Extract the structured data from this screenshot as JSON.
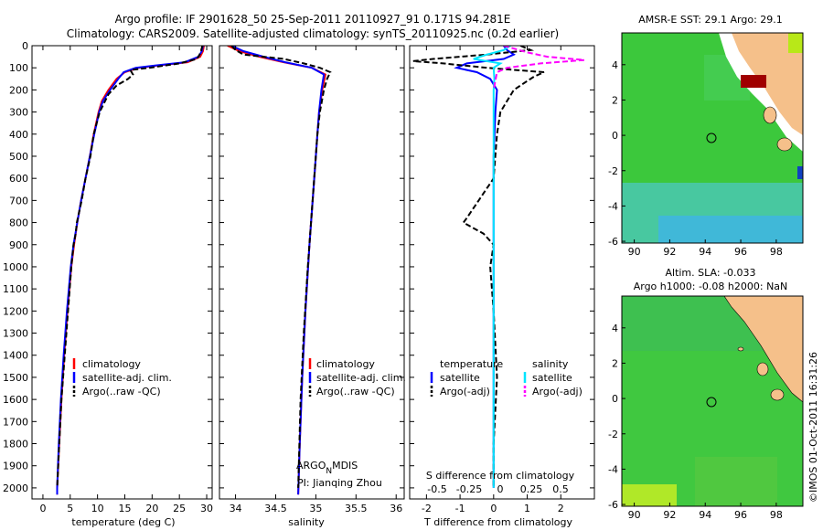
{
  "header": {
    "line1": "Argo profile: IF 2901628_50 25-Sep-2011 20110927_91 0.171S 94.281E",
    "line2": "Climatology: CARS2009. Satellite-adjusted climatology: synTS_20110925.nc (0.2d earlier)"
  },
  "colors": {
    "climatology": "#ff0000",
    "satellite": "#0000ff",
    "argo": "#000000",
    "salinity_satellite": "#00e5ff",
    "salinity_argo": "#ff00ff",
    "ocean": "#3cc83c",
    "land": "#f5c08a",
    "nodata": "#ffffff"
  },
  "chart_data": [
    {
      "id": "temperature",
      "type": "line",
      "xlabel": "temperature (deg C)",
      "xlim": [
        -2,
        31
      ],
      "xticks": [
        0,
        5,
        10,
        15,
        20,
        25,
        30
      ],
      "ylim": [
        2050,
        0
      ],
      "yticks": [
        0,
        100,
        200,
        300,
        400,
        500,
        600,
        700,
        800,
        900,
        1000,
        1100,
        1200,
        1300,
        1400,
        1500,
        1600,
        1700,
        1800,
        1900,
        2000
      ],
      "legend": [
        "climatology",
        "satellite-adj. clim.",
        "Argo(..raw -QC)"
      ],
      "series": [
        {
          "name": "climatology",
          "color": "#ff0000",
          "dash": "",
          "depth": [
            0,
            25,
            50,
            75,
            90,
            100,
            120,
            150,
            200,
            250,
            300,
            400,
            500,
            600,
            700,
            800,
            900,
            1000,
            1200,
            1400,
            1600,
            1800,
            2000,
            2030
          ],
          "values": [
            29.5,
            29.3,
            28.8,
            26.5,
            21.0,
            17.5,
            15.0,
            13.5,
            12.0,
            10.8,
            10.2,
            9.3,
            8.6,
            7.8,
            7.0,
            6.3,
            5.7,
            5.2,
            4.5,
            3.9,
            3.4,
            3.0,
            2.6,
            2.6
          ]
        },
        {
          "name": "satellite-adj. clim.",
          "color": "#0000ff",
          "dash": "",
          "depth": [
            0,
            25,
            50,
            75,
            90,
            100,
            120,
            150,
            200,
            250,
            300,
            400,
            500,
            600,
            700,
            800,
            900,
            1000,
            1200,
            1400,
            1600,
            1800,
            2000,
            2030
          ],
          "values": [
            29.3,
            29.1,
            28.5,
            26.0,
            20.5,
            17.0,
            14.8,
            13.8,
            12.3,
            11.0,
            10.3,
            9.4,
            8.6,
            7.8,
            7.0,
            6.3,
            5.6,
            5.1,
            4.4,
            3.8,
            3.3,
            2.9,
            2.6,
            2.6
          ]
        },
        {
          "name": "Argo(..raw -QC)",
          "color": "#000000",
          "dash": "6,3",
          "depth": [
            0,
            20,
            40,
            60,
            80,
            100,
            110,
            130,
            150,
            180,
            220,
            260,
            300,
            400,
            500,
            600,
            700,
            800,
            850,
            900,
            1000,
            1200,
            1400,
            1600,
            1800,
            2000
          ],
          "values": [
            29.2,
            29.0,
            28.7,
            28.2,
            25.0,
            19.5,
            16.0,
            16.5,
            15.6,
            13.5,
            12.0,
            11.2,
            10.4,
            9.3,
            8.7,
            7.8,
            7.1,
            6.2,
            6.0,
            5.6,
            5.2,
            4.6,
            4.0,
            3.4,
            3.0,
            2.6
          ]
        }
      ]
    },
    {
      "id": "salinity",
      "type": "line",
      "xlabel": "salinity",
      "xlim": [
        33.8,
        36.1
      ],
      "xticks": [
        34,
        34.5,
        35,
        35.5,
        36
      ],
      "ylim": [
        2050,
        0
      ],
      "legend": [
        "climatology",
        "satellite-adj. clim.",
        "Argo(..raw -QC)"
      ],
      "annotation": {
        "main": "ARGO",
        "sub": "N",
        "rest": "MDIS",
        "pi": "PI: Jianqing Zhou"
      },
      "series": [
        {
          "name": "climatology",
          "color": "#ff0000",
          "dash": "",
          "depth": [
            0,
            25,
            50,
            75,
            100,
            130,
            200,
            300,
            400,
            500,
            700,
            900,
            1200,
            1500,
            1800,
            2030
          ],
          "values": [
            33.9,
            34.05,
            34.3,
            34.6,
            34.95,
            35.12,
            35.08,
            35.04,
            35.02,
            35.0,
            34.96,
            34.92,
            34.87,
            34.83,
            34.8,
            34.78
          ]
        },
        {
          "name": "satellite-adj. clim.",
          "color": "#0000ff",
          "dash": "",
          "depth": [
            0,
            25,
            50,
            75,
            100,
            130,
            200,
            300,
            400,
            500,
            700,
            900,
            1200,
            1500,
            1800,
            2030
          ],
          "values": [
            33.95,
            34.1,
            34.35,
            34.62,
            34.95,
            35.1,
            35.07,
            35.04,
            35.02,
            35.0,
            34.96,
            34.92,
            34.87,
            34.83,
            34.8,
            34.78
          ]
        },
        {
          "name": "Argo(..raw -QC)",
          "color": "#000000",
          "dash": "6,3",
          "depth": [
            0,
            20,
            40,
            60,
            80,
            100,
            120,
            150,
            200,
            300,
            400,
            600,
            800,
            1000,
            1300,
            1600,
            2000
          ],
          "values": [
            33.95,
            34.0,
            34.1,
            34.6,
            34.85,
            35.05,
            35.18,
            35.14,
            35.1,
            35.05,
            35.02,
            34.98,
            34.94,
            34.9,
            34.85,
            34.81,
            34.78
          ]
        }
      ]
    },
    {
      "id": "difference",
      "type": "line",
      "xlabel": "T difference from climatology",
      "xlim": [
        -2.5,
        3.0
      ],
      "xticks": [
        -2,
        -1,
        0,
        1,
        2
      ],
      "s_label": "S difference from climatology",
      "s_ticks": [
        "-0.5",
        "-0.25",
        "0",
        "0.25",
        "0.5"
      ],
      "ylim": [
        2050,
        0
      ],
      "legend_left": {
        "title": "temperature",
        "items": [
          "satellite",
          "Argo(-adj)"
        ]
      },
      "legend_right": {
        "title": "salinity",
        "items": [
          "satellite",
          "Argo(-adj)"
        ]
      },
      "series": [
        {
          "name": "satellite",
          "quantity": "temperature",
          "color": "#0000ff",
          "dash": "",
          "depth": [
            0,
            20,
            40,
            60,
            80,
            100,
            120,
            150,
            200,
            300,
            500,
            1000,
            2000
          ],
          "values": [
            0.3,
            0.4,
            0.6,
            0.3,
            -0.8,
            -1.1,
            -0.5,
            -0.1,
            0.1,
            0.05,
            0.0,
            0.0,
            0.0
          ]
        },
        {
          "name": "Argo(-adj)",
          "quantity": "temperature",
          "color": "#000000",
          "dash": "6,3",
          "depth": [
            0,
            20,
            40,
            60,
            70,
            80,
            100,
            120,
            140,
            160,
            200,
            250,
            300,
            400,
            600,
            780,
            800,
            850,
            900,
            1000,
            1200,
            1500,
            1800,
            2000
          ],
          "values": [
            0.8,
            1.1,
            -0.2,
            -1.8,
            -2.4,
            -1.5,
            -0.2,
            1.5,
            1.2,
            1.0,
            0.6,
            0.4,
            0.2,
            0.1,
            0.0,
            -0.8,
            -0.9,
            -0.3,
            0.0,
            -0.1,
            0.0,
            0.1,
            0.0,
            0.0
          ]
        },
        {
          "name": "satellite",
          "quantity": "salinity",
          "color": "#00e5ff",
          "dash": "",
          "depth": [
            0,
            20,
            40,
            60,
            80,
            100,
            150,
            200,
            400,
            1000,
            2000
          ],
          "values": [
            0.5,
            0.3,
            -0.2,
            -0.6,
            0.2,
            0.0,
            0.02,
            0.0,
            0.0,
            0.0,
            0.0
          ]
        },
        {
          "name": "Argo(-adj)",
          "quantity": "salinity",
          "color": "#ff00ff",
          "dash": "6,3",
          "depth": [
            0,
            30,
            50,
            65,
            80,
            100,
            120,
            200
          ],
          "values": [
            0.3,
            1.0,
            1.6,
            2.7,
            1.4,
            0.4,
            0.1,
            0.0
          ]
        }
      ]
    }
  ],
  "maps": [
    {
      "id": "sst-map",
      "title": "AMSR-E SST: 29.1 Argo: 29.1",
      "xticks": [
        "90",
        "92",
        "94",
        "96",
        "98"
      ],
      "yticks": [
        "4",
        "2",
        "0",
        "-2",
        "-4",
        "-6"
      ]
    },
    {
      "id": "sla-map",
      "title_line1": "Altim. SLA: -0.033",
      "title_line2": "Argo h1000: -0.08 h2000: NaN",
      "xticks": [
        "90",
        "92",
        "94",
        "96",
        "98"
      ],
      "yticks": [
        "4",
        "2",
        "0",
        "-2",
        "-4",
        "-6"
      ]
    }
  ],
  "footer": {
    "credit": "©IMOS 01-Oct-2011 16:31:26"
  }
}
